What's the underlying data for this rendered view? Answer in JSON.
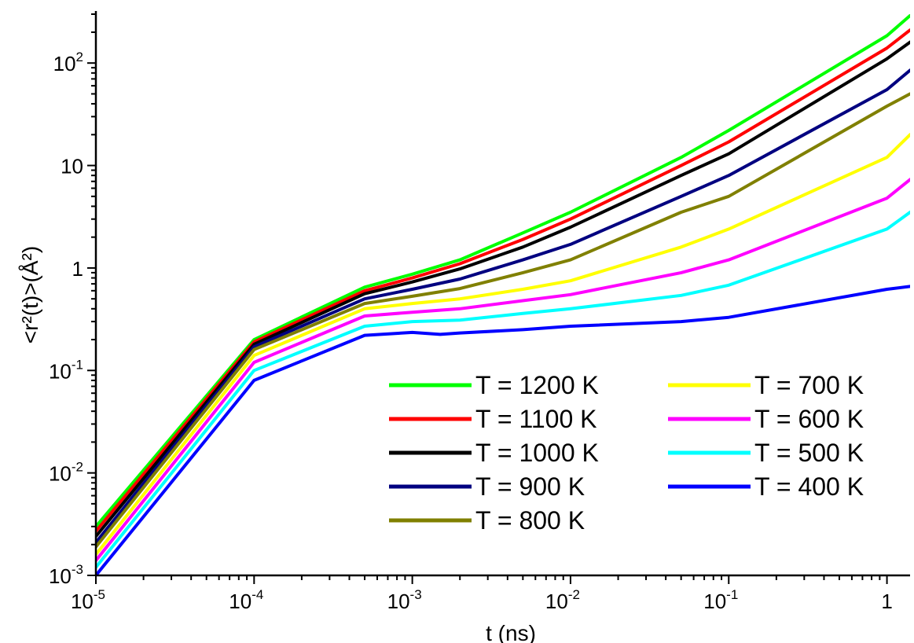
{
  "chart_data": {
    "type": "line",
    "x_scale": "log",
    "y_scale": "log",
    "xlabel": "t (ns)",
    "ylabel": "<r²(t)>(Å²)",
    "xlim": [
      1e-05,
      1.4
    ],
    "ylim": [
      0.001,
      300
    ],
    "x_ticks": [
      {
        "value": 1e-05,
        "base": "10",
        "exp": "-5"
      },
      {
        "value": 0.0001,
        "base": "10",
        "exp": "-4"
      },
      {
        "value": 0.001,
        "base": "10",
        "exp": "-3"
      },
      {
        "value": 0.01,
        "base": "10",
        "exp": "-2"
      },
      {
        "value": 0.1,
        "base": "10",
        "exp": "-1"
      },
      {
        "value": 1,
        "base": "1",
        "exp": ""
      }
    ],
    "y_ticks": [
      {
        "value": 0.001,
        "base": "10",
        "exp": "-3"
      },
      {
        "value": 0.01,
        "base": "10",
        "exp": "-2"
      },
      {
        "value": 0.1,
        "base": "10",
        "exp": "-1"
      },
      {
        "value": 1,
        "base": "1",
        "exp": ""
      },
      {
        "value": 10,
        "base": "10",
        "exp": ""
      },
      {
        "value": 100,
        "base": "10",
        "exp": "2"
      }
    ],
    "grid": false,
    "legend_position": "bottom-right",
    "series": [
      {
        "name": "T = 1200 K",
        "color": "#00ff00",
        "x": [
          1e-05,
          0.0001,
          0.0005,
          0.001,
          0.002,
          0.005,
          0.01,
          0.05,
          0.1,
          1.0,
          1.4
        ],
        "y": [
          0.003,
          0.2,
          0.65,
          0.87,
          1.2,
          2.2,
          3.5,
          12,
          22,
          185,
          290
        ]
      },
      {
        "name": "T = 1100 K",
        "color": "#ff0000",
        "x": [
          1e-05,
          0.0001,
          0.0005,
          0.001,
          0.002,
          0.005,
          0.01,
          0.05,
          0.1,
          1.0,
          1.4
        ],
        "y": [
          0.0027,
          0.19,
          0.6,
          0.8,
          1.1,
          1.9,
          3.0,
          10,
          17,
          140,
          210
        ]
      },
      {
        "name": "T = 1000 K",
        "color": "#000000",
        "x": [
          1e-05,
          0.0001,
          0.0005,
          0.001,
          0.002,
          0.005,
          0.01,
          0.05,
          0.1,
          1.0,
          1.4
        ],
        "y": [
          0.0024,
          0.18,
          0.56,
          0.73,
          0.98,
          1.6,
          2.5,
          8,
          13,
          110,
          160
        ]
      },
      {
        "name": "T  = 900 K",
        "color": "#000080",
        "x": [
          1e-05,
          0.0001,
          0.0005,
          0.001,
          0.002,
          0.005,
          0.01,
          0.05,
          0.1,
          1.0,
          1.4
        ],
        "y": [
          0.0021,
          0.17,
          0.5,
          0.62,
          0.78,
          1.2,
          1.7,
          5,
          8,
          55,
          85
        ]
      },
      {
        "name": "T = 800 K",
        "color": "#808000",
        "x": [
          1e-05,
          0.0001,
          0.0005,
          0.001,
          0.002,
          0.005,
          0.01,
          0.05,
          0.1,
          1.0,
          1.4
        ],
        "y": [
          0.0019,
          0.16,
          0.45,
          0.53,
          0.63,
          0.9,
          1.2,
          3.5,
          5,
          38,
          50
        ]
      },
      {
        "name": "T = 700 K",
        "color": "#ffff00",
        "x": [
          1e-05,
          0.0001,
          0.0005,
          0.001,
          0.002,
          0.005,
          0.01,
          0.05,
          0.1,
          1.0,
          1.4
        ],
        "y": [
          0.0016,
          0.14,
          0.4,
          0.45,
          0.5,
          0.62,
          0.75,
          1.6,
          2.4,
          12,
          20
        ]
      },
      {
        "name": "T = 600 K",
        "color": "#ff00ff",
        "x": [
          1e-05,
          0.0001,
          0.0005,
          0.001,
          0.002,
          0.005,
          0.01,
          0.05,
          0.1,
          1.0,
          1.4
        ],
        "y": [
          0.0014,
          0.12,
          0.34,
          0.37,
          0.4,
          0.48,
          0.55,
          0.9,
          1.2,
          4.8,
          7.3
        ]
      },
      {
        "name": "T = 500 K",
        "color": "#00ffff",
        "x": [
          1e-05,
          0.0001,
          0.0005,
          0.001,
          0.002,
          0.005,
          0.01,
          0.05,
          0.1,
          1.0,
          1.4
        ],
        "y": [
          0.0012,
          0.1,
          0.27,
          0.3,
          0.31,
          0.36,
          0.4,
          0.54,
          0.68,
          2.4,
          3.5
        ]
      },
      {
        "name": "T = 400 K",
        "color": "#0000ff",
        "x": [
          1e-05,
          0.0001,
          0.0005,
          0.001,
          0.0015,
          0.002,
          0.005,
          0.01,
          0.05,
          0.1,
          1.0,
          1.4
        ],
        "y": [
          0.001,
          0.08,
          0.22,
          0.235,
          0.225,
          0.232,
          0.25,
          0.27,
          0.3,
          0.33,
          0.62,
          0.66
        ]
      }
    ]
  }
}
